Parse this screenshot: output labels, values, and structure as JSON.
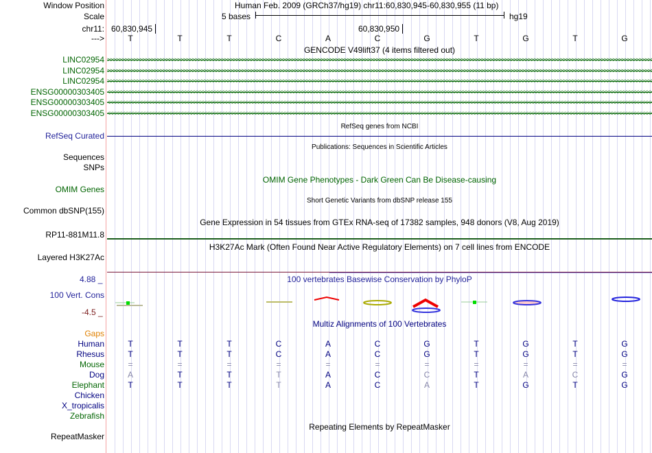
{
  "header": {
    "window_position_label": "Window Position",
    "title": "Human Feb. 2009 (GRCh37/hg19)   chr11:60,830,945-60,830,955 (11 bp)",
    "scale_label": "Scale",
    "scale_text": "5 bases",
    "assembly": "hg19",
    "chrom_label": "chr11:",
    "pos1": "60,830,945",
    "pos2": "60,830,950",
    "strand_label": "--->"
  },
  "bases": [
    "T",
    "T",
    "T",
    "C",
    "A",
    "C",
    "G",
    "T",
    "G",
    "T",
    "G"
  ],
  "gencode": {
    "title": "GENCODE V49lift37 (4 items filtered out)",
    "items": [
      {
        "name": "LINC02954",
        "strand": ">"
      },
      {
        "name": "LINC02954",
        "strand": ">"
      },
      {
        "name": "LINC02954",
        "strand": ">"
      },
      {
        "name": "ENSG00000303405",
        "strand": "<"
      },
      {
        "name": "ENSG00000303405",
        "strand": "<"
      },
      {
        "name": "ENSG00000303405",
        "strand": "<"
      }
    ]
  },
  "refseq": {
    "title": "RefSeq genes from NCBI",
    "label": "RefSeq Curated"
  },
  "pubs": {
    "title": "Publications: Sequences in Scientific Articles",
    "label1": "Sequences",
    "label2": "SNPs"
  },
  "omim": {
    "title": "OMIM Gene Phenotypes - Dark Green Can Be Disease-causing",
    "label": "OMIM Genes"
  },
  "dbsnp": {
    "title": "Short Genetic Variants from dbSNP release 155",
    "label": "Common dbSNP(155)"
  },
  "gtex": {
    "title": "Gene Expression in 54 tissues from GTEx RNA-seq of 17382 samples, 948 donors (V8, Aug 2019)",
    "label": "RP11-881M11.8"
  },
  "h3k27ac": {
    "title": "H3K27Ac Mark (Often Found Near Active Regulatory Elements) on 7 cell lines from ENCODE",
    "label": "Layered H3K27Ac"
  },
  "phylop": {
    "title": "100 vertebrates Basewise Conservation by PhyloP",
    "label": "100 Vert. Cons",
    "max": "4.88 _",
    "min": "-4.5 _"
  },
  "multiz": {
    "title": "Multiz Alignments of 100 Vertebrates",
    "gaps_label": "Gaps",
    "species": [
      {
        "name": "Human",
        "color": "#000080",
        "seq": [
          "T",
          "T",
          "T",
          "C",
          "A",
          "C",
          "G",
          "T",
          "G",
          "T",
          "G"
        ],
        "dim": [
          0,
          0,
          0,
          0,
          0,
          0,
          0,
          0,
          0,
          0,
          0
        ]
      },
      {
        "name": "Rhesus",
        "color": "#000080",
        "seq": [
          "T",
          "T",
          "T",
          "C",
          "A",
          "C",
          "G",
          "T",
          "G",
          "T",
          "G"
        ],
        "dim": [
          0,
          0,
          0,
          0,
          0,
          0,
          0,
          0,
          0,
          0,
          0
        ]
      },
      {
        "name": "Mouse",
        "color": "#006400",
        "seq": [
          "=",
          "=",
          "=",
          "=",
          "=",
          "=",
          "=",
          "=",
          "=",
          "=",
          "="
        ],
        "dim": [
          1,
          1,
          1,
          1,
          1,
          1,
          1,
          1,
          1,
          1,
          1
        ]
      },
      {
        "name": "Dog",
        "color": "#000080",
        "seq": [
          "A",
          "T",
          "T",
          "T",
          "A",
          "C",
          "C",
          "T",
          "A",
          "C",
          "G"
        ],
        "dim": [
          1,
          0,
          0,
          1,
          0,
          0,
          1,
          0,
          1,
          1,
          0
        ]
      },
      {
        "name": "Elephant",
        "color": "#006400",
        "seq": [
          "T",
          "T",
          "T",
          "T",
          "A",
          "C",
          "A",
          "T",
          "G",
          "T",
          "G"
        ],
        "dim": [
          0,
          0,
          0,
          1,
          0,
          0,
          1,
          0,
          0,
          0,
          0
        ]
      },
      {
        "name": "Chicken",
        "color": "#000080",
        "seq": [],
        "dim": []
      },
      {
        "name": "X_tropicalis",
        "color": "#000080",
        "seq": [],
        "dim": []
      },
      {
        "name": "Zebrafish",
        "color": "#006400",
        "seq": [],
        "dim": []
      }
    ]
  },
  "repeatmasker": {
    "title": "Repeating Elements by RepeatMasker",
    "label": "RepeatMasker"
  }
}
